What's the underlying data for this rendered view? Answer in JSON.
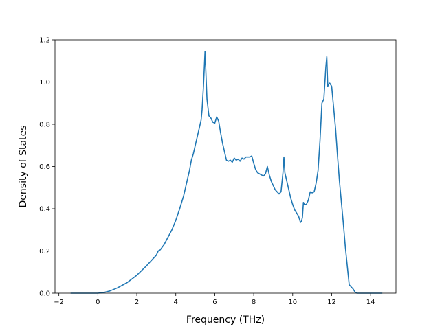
{
  "chart_data": {
    "type": "line",
    "title": "",
    "xlabel": "Frequency (THz)",
    "ylabel": "Density of States",
    "xlim": [
      -2.2,
      15.3
    ],
    "ylim": [
      0.0,
      1.2
    ],
    "xticks": [
      -2,
      0,
      2,
      4,
      6,
      8,
      10,
      12,
      14
    ],
    "xtick_labels": [
      "−2",
      "0",
      "2",
      "4",
      "6",
      "8",
      "10",
      "12",
      "14"
    ],
    "yticks": [
      0.0,
      0.2,
      0.4,
      0.6,
      0.8,
      1.0,
      1.2
    ],
    "ytick_labels": [
      "0.0",
      "0.2",
      "0.4",
      "0.6",
      "0.8",
      "1.0",
      "1.2"
    ],
    "grid": false,
    "legend": "none",
    "series": [
      {
        "color": "#1f77b4",
        "x": [
          -1.4,
          -0.5,
          0.0,
          0.3,
          0.6,
          1.0,
          1.5,
          2.0,
          2.5,
          3.0,
          3.1,
          3.2,
          3.4,
          3.6,
          3.8,
          4.0,
          4.2,
          4.4,
          4.5,
          4.6,
          4.7,
          4.8,
          4.9,
          5.0,
          5.1,
          5.2,
          5.3,
          5.35,
          5.42,
          5.5,
          5.6,
          5.7,
          5.8,
          5.9,
          6.0,
          6.1,
          6.2,
          6.3,
          6.4,
          6.5,
          6.6,
          6.7,
          6.8,
          6.9,
          7.0,
          7.1,
          7.2,
          7.3,
          7.4,
          7.5,
          7.6,
          7.7,
          7.8,
          7.9,
          8.0,
          8.1,
          8.2,
          8.3,
          8.4,
          8.5,
          8.6,
          8.7,
          8.8,
          8.9,
          9.0,
          9.1,
          9.2,
          9.3,
          9.4,
          9.5,
          9.55,
          9.6,
          9.7,
          9.8,
          9.9,
          10.0,
          10.1,
          10.2,
          10.3,
          10.4,
          10.45,
          10.5,
          10.55,
          10.6,
          10.7,
          10.8,
          10.9,
          11.0,
          11.1,
          11.2,
          11.3,
          11.4,
          11.5,
          11.6,
          11.7,
          11.75,
          11.8,
          11.85,
          11.9,
          12.0,
          12.1,
          12.2,
          12.3,
          12.4,
          12.5,
          12.6,
          12.7,
          12.8,
          12.9,
          13.0,
          13.1,
          13.2,
          13.3,
          13.6,
          14.6
        ],
        "y": [
          0.0,
          0.0,
          0.0,
          0.003,
          0.01,
          0.025,
          0.05,
          0.085,
          0.13,
          0.18,
          0.2,
          0.205,
          0.23,
          0.265,
          0.3,
          0.345,
          0.4,
          0.46,
          0.5,
          0.54,
          0.58,
          0.63,
          0.66,
          0.7,
          0.74,
          0.78,
          0.82,
          0.87,
          0.98,
          1.145,
          0.92,
          0.84,
          0.83,
          0.81,
          0.805,
          0.835,
          0.815,
          0.76,
          0.71,
          0.67,
          0.63,
          0.625,
          0.63,
          0.62,
          0.64,
          0.63,
          0.635,
          0.625,
          0.64,
          0.635,
          0.645,
          0.645,
          0.645,
          0.65,
          0.615,
          0.585,
          0.57,
          0.565,
          0.56,
          0.555,
          0.565,
          0.6,
          0.56,
          0.53,
          0.51,
          0.49,
          0.48,
          0.47,
          0.48,
          0.57,
          0.645,
          0.57,
          0.53,
          0.49,
          0.45,
          0.42,
          0.395,
          0.38,
          0.365,
          0.335,
          0.34,
          0.36,
          0.43,
          0.42,
          0.42,
          0.44,
          0.48,
          0.475,
          0.48,
          0.52,
          0.58,
          0.72,
          0.9,
          0.92,
          1.07,
          1.12,
          0.98,
          0.99,
          0.995,
          0.98,
          0.88,
          0.78,
          0.65,
          0.53,
          0.43,
          0.33,
          0.22,
          0.13,
          0.04,
          0.03,
          0.02,
          0.005,
          0.0,
          0.0,
          0.0
        ]
      }
    ]
  }
}
